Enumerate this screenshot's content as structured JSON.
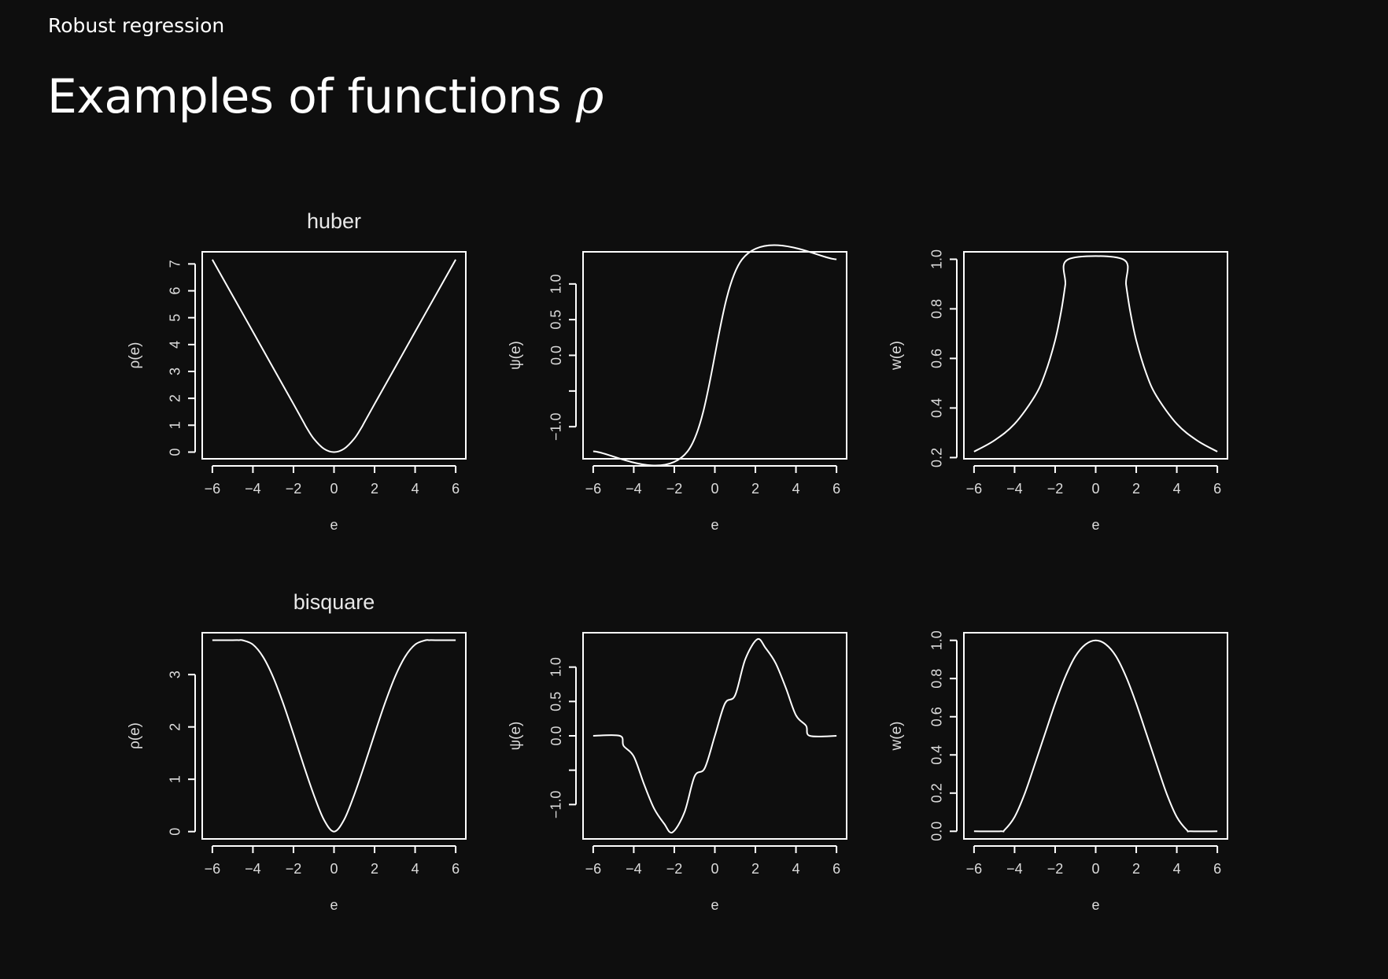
{
  "header": {
    "section": "Robust regression",
    "title_text": "Examples of functions ",
    "title_symbol": "ρ"
  },
  "colors": {
    "background": "#0e0e0e",
    "foreground": "#ffffff",
    "axis_text": "#dcdcdc"
  },
  "chart_data": [
    {
      "type": "line",
      "title": "huber",
      "xlabel": "e",
      "ylabel": "ρ(e)",
      "xlim": [
        -6.5,
        6.5
      ],
      "ylim": [
        -0.25,
        7.45
      ],
      "xticks": [
        -6,
        -4,
        -2,
        0,
        2,
        4,
        6
      ],
      "xtick_labels": [
        "−6",
        "−4",
        "−2",
        "0",
        "2",
        "4",
        "6"
      ],
      "yticks": [
        0,
        1,
        2,
        3,
        4,
        5,
        6,
        7
      ],
      "ytick_labels": [
        "0",
        "1",
        "2",
        "3",
        "4",
        "5",
        "6",
        "7"
      ],
      "x": [
        -6,
        -4.5,
        -3,
        -2,
        -1.5,
        -1.345,
        -1,
        -0.5,
        0,
        0.5,
        1,
        1.345,
        1.5,
        2,
        3,
        4.5,
        6
      ],
      "y": [
        7.16,
        5.15,
        3.13,
        1.79,
        1.11,
        0.9,
        0.5,
        0.125,
        0,
        0.125,
        0.5,
        0.9,
        1.11,
        1.79,
        3.13,
        5.15,
        7.16
      ]
    },
    {
      "type": "line",
      "title": "",
      "xlabel": "e",
      "ylabel": "ψ(e)",
      "xlim": [
        -6.5,
        6.5
      ],
      "ylim": [
        -1.45,
        1.45
      ],
      "xticks": [
        -6,
        -4,
        -2,
        0,
        2,
        4,
        6
      ],
      "xtick_labels": [
        "−6",
        "−4",
        "−2",
        "0",
        "2",
        "4",
        "6"
      ],
      "yticks": [
        -1.0,
        -0.5,
        0.0,
        0.5,
        1.0
      ],
      "ytick_labels": [
        "−1.0",
        "",
        "0.0",
        "0.5",
        "1.0"
      ],
      "x": [
        -6,
        -1.345,
        1.345,
        6
      ],
      "y": [
        -1.345,
        -1.345,
        1.345,
        1.345
      ]
    },
    {
      "type": "line",
      "title": "",
      "xlabel": "e",
      "ylabel": "w(e)",
      "xlim": [
        -6.5,
        6.5
      ],
      "ylim": [
        0.195,
        1.03
      ],
      "xticks": [
        -6,
        -4,
        -2,
        0,
        2,
        4,
        6
      ],
      "xtick_labels": [
        "−6",
        "−4",
        "−2",
        "0",
        "2",
        "4",
        "6"
      ],
      "yticks": [
        0.2,
        0.4,
        0.6,
        0.8,
        1.0
      ],
      "ytick_labels": [
        "0.2",
        "0.4",
        "0.6",
        "0.8",
        "1.0"
      ],
      "x": [
        -6,
        -5,
        -4,
        -3,
        -2.5,
        -2,
        -1.7,
        -1.5,
        -1.345,
        1.345,
        1.5,
        1.7,
        2,
        2.5,
        3,
        4,
        5,
        6
      ],
      "y": [
        0.224,
        0.269,
        0.336,
        0.448,
        0.538,
        0.673,
        0.791,
        0.897,
        1.0,
        1.0,
        0.897,
        0.791,
        0.673,
        0.538,
        0.448,
        0.336,
        0.269,
        0.224
      ]
    },
    {
      "type": "line",
      "title": "bisquare",
      "xlabel": "e",
      "ylabel": "ρ(e)",
      "xlim": [
        -6.5,
        6.5
      ],
      "ylim": [
        -0.14,
        3.8
      ],
      "xticks": [
        -6,
        -4,
        -2,
        0,
        2,
        4,
        6
      ],
      "xtick_labels": [
        "−6",
        "−4",
        "−2",
        "0",
        "2",
        "4",
        "6"
      ],
      "yticks": [
        0,
        1,
        2,
        3
      ],
      "ytick_labels": [
        "0",
        "1",
        "2",
        "3"
      ],
      "x": [
        -6,
        -5,
        -4.685,
        -4.5,
        -4,
        -3.5,
        -3,
        -2.5,
        -2,
        -1.5,
        -1,
        -0.5,
        0,
        0.5,
        1,
        1.5,
        2,
        2.5,
        3,
        3.5,
        4,
        4.5,
        4.685,
        5,
        6
      ],
      "y": [
        3.658,
        3.658,
        3.658,
        3.655,
        3.574,
        3.339,
        2.951,
        2.442,
        1.865,
        1.269,
        0.705,
        0.229,
        0,
        0.229,
        0.705,
        1.269,
        1.865,
        2.442,
        2.951,
        3.339,
        3.574,
        3.655,
        3.658,
        3.658,
        3.658
      ]
    },
    {
      "type": "line",
      "title": "",
      "xlabel": "e",
      "ylabel": "ψ(e)",
      "xlim": [
        -6.5,
        6.5
      ],
      "ylim": [
        -1.5,
        1.5
      ],
      "xticks": [
        -6,
        -4,
        -2,
        0,
        2,
        4,
        6
      ],
      "xtick_labels": [
        "−6",
        "−4",
        "−2",
        "0",
        "2",
        "4",
        "6"
      ],
      "yticks": [
        -1.0,
        -0.5,
        0.0,
        0.5,
        1.0
      ],
      "ytick_labels": [
        "−1.0",
        "",
        "0.0",
        "0.5",
        "1.0"
      ],
      "x": [
        -6,
        -4.685,
        -4.5,
        -4,
        -3.5,
        -3,
        -2.5,
        -2.095,
        -1.5,
        -1,
        -0.5,
        0,
        0.5,
        1,
        1.5,
        2.095,
        2.5,
        3,
        3.5,
        4,
        4.5,
        4.685,
        6
      ],
      "y": [
        0,
        0,
        -0.146,
        -0.299,
        -0.698,
        -1.056,
        -1.278,
        -1.405,
        -1.114,
        -0.59,
        -0.471,
        0,
        0.471,
        0.59,
        1.114,
        1.405,
        1.278,
        1.056,
        0.698,
        0.299,
        0.146,
        0,
        0
      ]
    },
    {
      "type": "line",
      "title": "",
      "xlabel": "e",
      "ylabel": "w(e)",
      "xlim": [
        -6.5,
        6.5
      ],
      "ylim": [
        -0.04,
        1.04
      ],
      "xticks": [
        -6,
        -4,
        -2,
        0,
        2,
        4,
        6
      ],
      "xtick_labels": [
        "−6",
        "−4",
        "−2",
        "0",
        "2",
        "4",
        "6"
      ],
      "yticks": [
        0.0,
        0.2,
        0.4,
        0.6,
        0.8,
        1.0
      ],
      "ytick_labels": [
        "0.0",
        "0.2",
        "0.4",
        "0.6",
        "0.8",
        "1.0"
      ],
      "x": [
        -6,
        -4.685,
        -4.5,
        -4,
        -3.5,
        -3,
        -2.5,
        -2,
        -1.5,
        -1,
        -0.5,
        0,
        0.5,
        1,
        1.5,
        2,
        2.5,
        3,
        3.5,
        4,
        4.5,
        4.685,
        6
      ],
      "y": [
        0,
        0,
        0.006,
        0.075,
        0.197,
        0.352,
        0.511,
        0.669,
        0.809,
        0.917,
        0.979,
        1.0,
        0.979,
        0.917,
        0.809,
        0.669,
        0.511,
        0.352,
        0.197,
        0.075,
        0.006,
        0,
        0
      ]
    }
  ]
}
